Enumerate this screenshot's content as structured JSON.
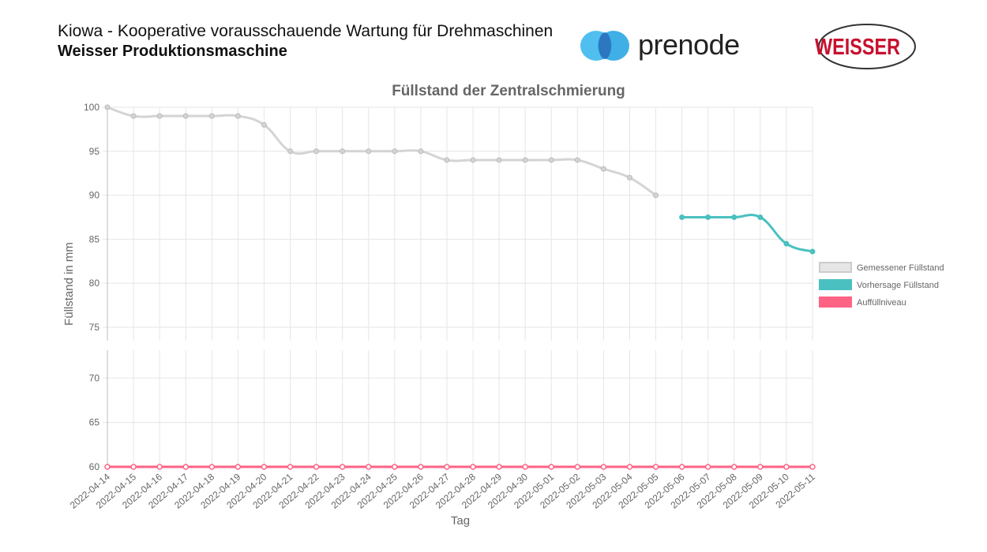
{
  "header": {
    "title": "Kiowa - Kooperative vorausschauende Wartung für Drehmaschinen",
    "subtitle": "Weisser Produktionsmaschine",
    "prenode_logo_text": "prenode",
    "weisser_logo_text": "WEISSER"
  },
  "colors": {
    "measured": "#d4d4d4",
    "forecast": "#4bc0c0",
    "refill": "#ff6384",
    "grid": "#e6e6e6",
    "prenode_blue": "#3db8ee",
    "weisser_red": "#c8102e"
  },
  "chart_data": {
    "type": "line",
    "title": "Füllstand der Zentralschmierung",
    "xlabel": "Tag",
    "ylabel": "Füllstand in mm",
    "ylim": [
      60,
      100
    ],
    "yticks": [
      60,
      65,
      70,
      75,
      80,
      85,
      90,
      95,
      100
    ],
    "grid": true,
    "legend_position": "right",
    "categories": [
      "2022-04-14",
      "2022-04-15",
      "2022-04-16",
      "2022-04-17",
      "2022-04-18",
      "2022-04-19",
      "2022-04-20",
      "2022-04-21",
      "2022-04-22",
      "2022-04-23",
      "2022-04-24",
      "2022-04-25",
      "2022-04-26",
      "2022-04-27",
      "2022-04-28",
      "2022-04-29",
      "2022-04-30",
      "2022-05-01",
      "2022-05-02",
      "2022-05-03",
      "2022-05-04",
      "2022-05-05",
      "2022-05-06",
      "2022-05-07",
      "2022-05-08",
      "2022-05-09",
      "2022-05-10",
      "2022-05-11"
    ],
    "series": [
      {
        "name": "Gemessener Füllstand",
        "values": [
          100,
          99,
          99,
          99,
          99,
          99,
          98,
          95,
          95,
          95,
          95,
          95,
          95,
          94,
          94,
          94,
          94,
          94,
          94,
          93,
          92,
          90,
          null,
          null,
          null,
          null,
          null,
          null
        ]
      },
      {
        "name": "Vorhersage Füllstand",
        "values": [
          null,
          null,
          null,
          null,
          null,
          null,
          null,
          null,
          null,
          null,
          null,
          null,
          null,
          null,
          null,
          null,
          null,
          null,
          null,
          null,
          null,
          null,
          87.5,
          87.5,
          87.5,
          87.5,
          84.5,
          83.6
        ]
      },
      {
        "name": "Auffüllniveau",
        "values": [
          60,
          60,
          60,
          60,
          60,
          60,
          60,
          60,
          60,
          60,
          60,
          60,
          60,
          60,
          60,
          60,
          60,
          60,
          60,
          60,
          60,
          60,
          60,
          60,
          60,
          60,
          60,
          60
        ]
      }
    ]
  }
}
